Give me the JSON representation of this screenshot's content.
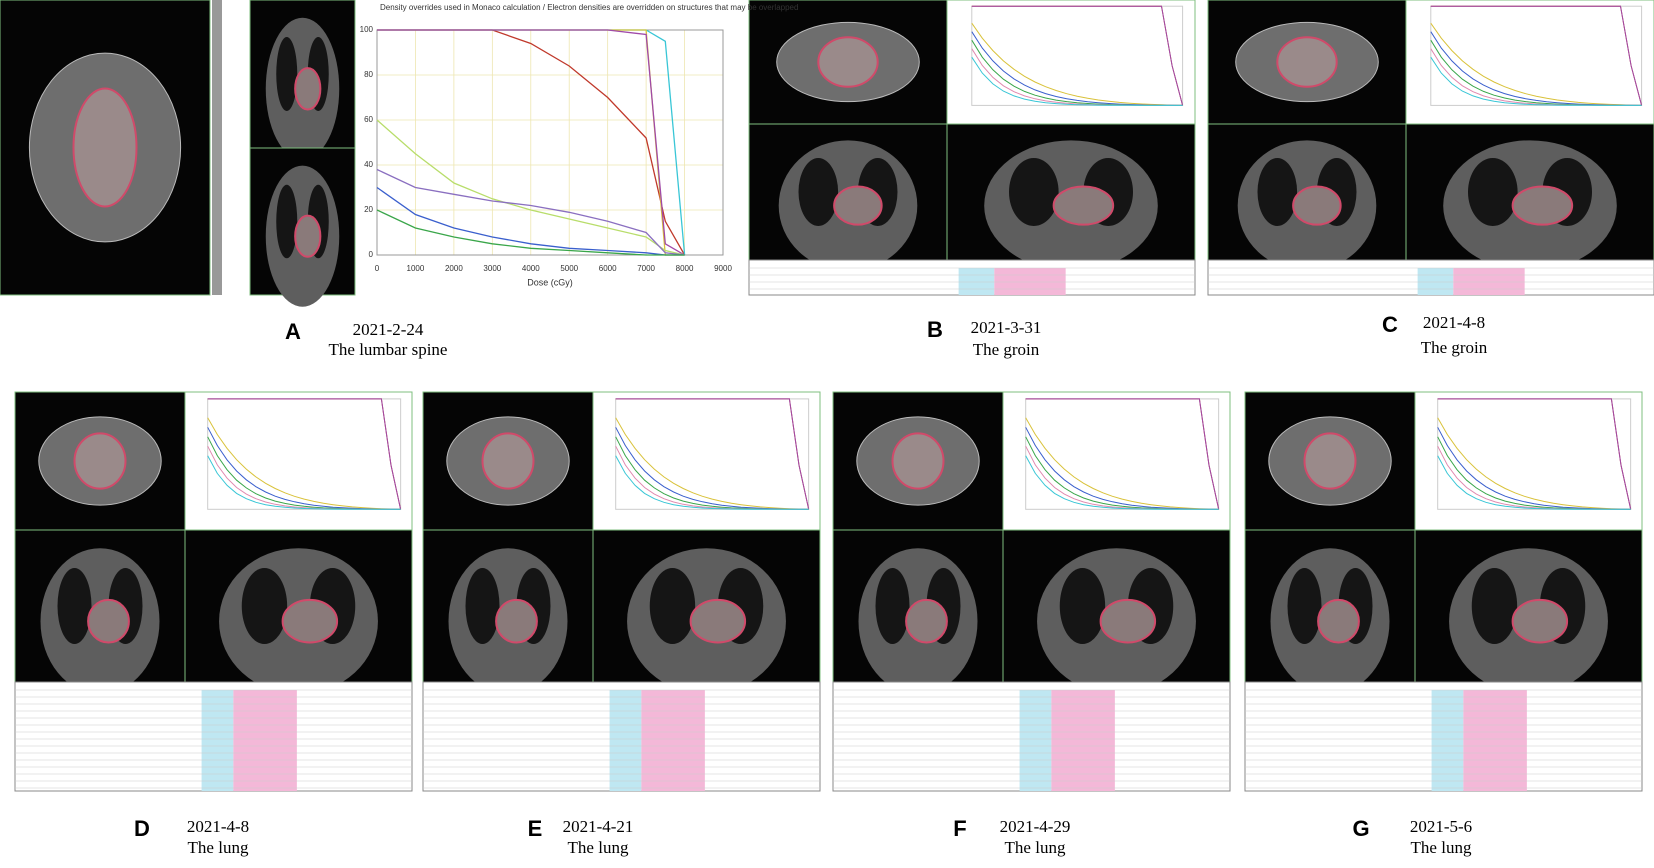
{
  "panels": [
    {
      "letter": "A",
      "date": "2021-2-24",
      "site": "The lumbar spine"
    },
    {
      "letter": "B",
      "date": "2021-3-31",
      "site": "The groin"
    },
    {
      "letter": "C",
      "date": "2021-4-8",
      "site": "The groin"
    },
    {
      "letter": "D",
      "date": "2021-4-8",
      "site": "The lung"
    },
    {
      "letter": "E",
      "date": "2021-4-21",
      "site": "The lung"
    },
    {
      "letter": "F",
      "date": "2021-4-29",
      "site": "The lung"
    },
    {
      "letter": "G",
      "date": "2021-5-6",
      "site": "The lung"
    }
  ],
  "chart_data": {
    "type": "line",
    "title": "Density overrides used in Monaco calculation / Electron densities are overridden on structures that may be overlapped",
    "x_label": "Dose (cGy)",
    "x": [
      0,
      1000,
      2000,
      3000,
      4000,
      5000,
      6000,
      7000,
      7500,
      8000
    ],
    "xlim": [
      0,
      9000
    ],
    "ylim": [
      0,
      100
    ],
    "xticks": [
      0,
      1000,
      2000,
      3000,
      4000,
      5000,
      6000,
      7000,
      8000,
      9000
    ],
    "yticks": [
      0,
      20,
      40,
      60,
      80,
      100
    ],
    "grid": true,
    "series": [
      {
        "color": "#c0392b",
        "values": [
          100,
          100,
          100,
          100,
          94,
          84,
          70,
          52,
          15,
          0
        ]
      },
      {
        "color": "#39c6d6",
        "values": [
          100,
          100,
          100,
          100,
          100,
          100,
          100,
          100,
          95,
          0
        ]
      },
      {
        "color": "#d9c23a",
        "values": [
          100,
          100,
          100,
          100,
          100,
          100,
          100,
          100,
          0,
          0
        ]
      },
      {
        "color": "#a04aa8",
        "values": [
          100,
          100,
          100,
          100,
          100,
          100,
          100,
          98,
          5,
          0
        ]
      },
      {
        "color": "#b8dd6a",
        "values": [
          60,
          45,
          32,
          25,
          20,
          16,
          12,
          8,
          2,
          0
        ]
      },
      {
        "color": "#8a6fc0",
        "values": [
          38,
          30,
          27,
          24,
          22,
          19,
          15,
          10,
          1,
          0
        ]
      },
      {
        "color": "#3a5fcd",
        "values": [
          30,
          18,
          12,
          8,
          5,
          3,
          2,
          1,
          0,
          0
        ]
      },
      {
        "color": "#3aa64a",
        "values": [
          20,
          12,
          8,
          5,
          3,
          2,
          1,
          0,
          0,
          0
        ]
      }
    ]
  }
}
